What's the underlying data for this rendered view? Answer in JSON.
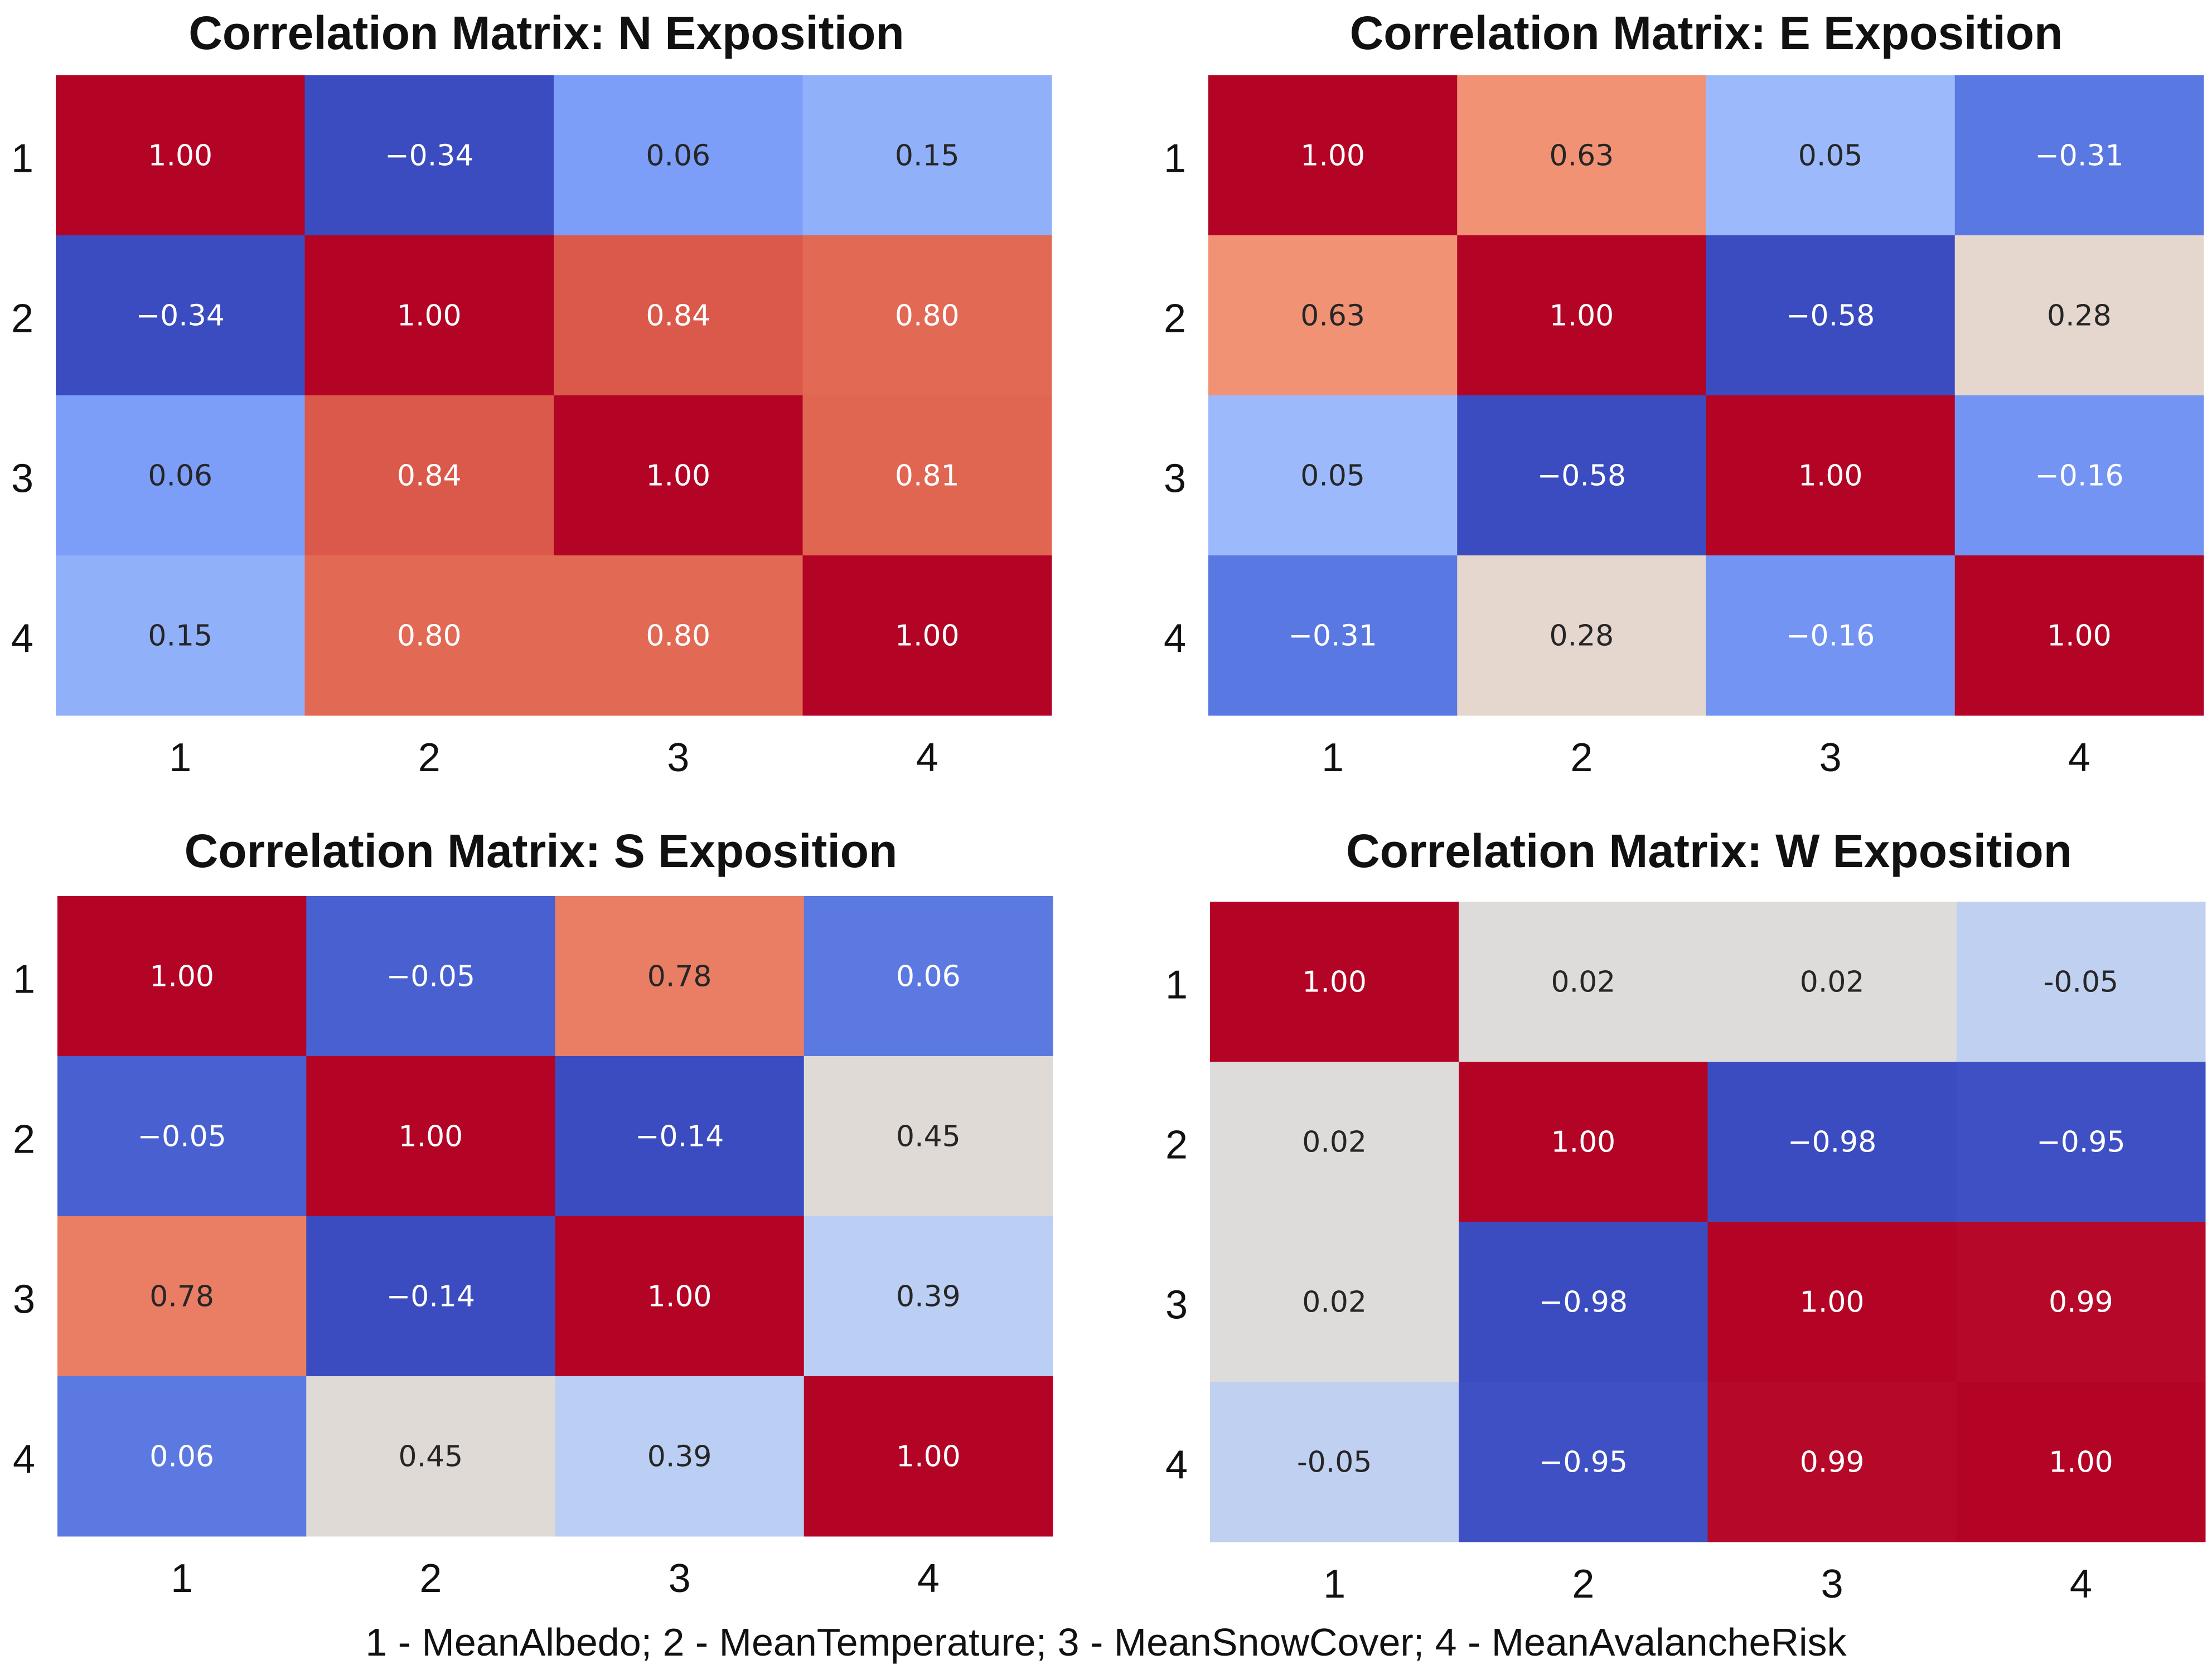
{
  "chart_data": [
    {
      "type": "heatmap",
      "title": "Correlation Matrix: N Exposition",
      "row_labels": [
        "1",
        "2",
        "3",
        "4"
      ],
      "col_labels": [
        "1",
        "2",
        "3",
        "4"
      ],
      "values": [
        [
          1.0,
          -0.34,
          0.06,
          0.15
        ],
        [
          -0.34,
          1.0,
          0.84,
          0.8
        ],
        [
          0.06,
          0.84,
          1.0,
          0.81
        ],
        [
          0.15,
          0.8,
          0.8,
          1.0
        ]
      ],
      "labels": [
        [
          "1.00",
          "−0.34",
          "0.06",
          "0.15"
        ],
        [
          "−0.34",
          "1.00",
          "0.84",
          "0.80"
        ],
        [
          "0.06",
          "0.84",
          "1.00",
          "0.81"
        ],
        [
          "0.15",
          "0.80",
          "0.80",
          "1.00"
        ]
      ],
      "vmin": -0.34,
      "vmax": 1.0
    },
    {
      "type": "heatmap",
      "title": "Correlation Matrix: E Exposition",
      "row_labels": [
        "1",
        "2",
        "3",
        "4"
      ],
      "col_labels": [
        "1",
        "2",
        "3",
        "4"
      ],
      "values": [
        [
          1.0,
          0.63,
          0.05,
          -0.31
        ],
        [
          0.63,
          1.0,
          -0.58,
          0.28
        ],
        [
          0.05,
          -0.58,
          1.0,
          -0.16
        ],
        [
          -0.31,
          0.28,
          -0.16,
          1.0
        ]
      ],
      "labels": [
        [
          "1.00",
          "0.63",
          "0.05",
          "−0.31"
        ],
        [
          "0.63",
          "1.00",
          "−0.58",
          "0.28"
        ],
        [
          "0.05",
          "−0.58",
          "1.00",
          "−0.16"
        ],
        [
          "−0.31",
          "0.28",
          "−0.16",
          "1.00"
        ]
      ],
      "vmin": -0.58,
      "vmax": 1.0
    },
    {
      "type": "heatmap",
      "title": "Correlation Matrix: S Exposition",
      "row_labels": [
        "1",
        "2",
        "3",
        "4"
      ],
      "col_labels": [
        "1",
        "2",
        "3",
        "4"
      ],
      "values": [
        [
          1.0,
          -0.05,
          0.78,
          0.06
        ],
        [
          -0.05,
          1.0,
          -0.14,
          0.45
        ],
        [
          0.78,
          -0.14,
          1.0,
          0.39
        ],
        [
          0.06,
          0.45,
          0.39,
          1.0
        ]
      ],
      "labels": [
        [
          "1.00",
          "−0.05",
          "0.78",
          "0.06"
        ],
        [
          "−0.05",
          "1.00",
          "−0.14",
          "0.45"
        ],
        [
          "0.78",
          "−0.14",
          "1.00",
          "0.39"
        ],
        [
          "0.06",
          "0.45",
          "0.39",
          "1.00"
        ]
      ],
      "vmin": -0.14,
      "vmax": 1.0
    },
    {
      "type": "heatmap",
      "title": "Correlation Matrix: W Exposition",
      "row_labels": [
        "1",
        "2",
        "3",
        "4"
      ],
      "col_labels": [
        "1",
        "2",
        "3",
        "4"
      ],
      "values": [
        [
          1.0,
          0.02,
          0.02,
          -0.05
        ],
        [
          0.02,
          1.0,
          -0.98,
          -0.95
        ],
        [
          0.02,
          -0.98,
          1.0,
          0.99
        ],
        [
          -0.05,
          -0.95,
          0.99,
          1.0
        ]
      ],
      "labels": [
        [
          "1.00",
          "0.02",
          "0.02",
          "-0.05"
        ],
        [
          "0.02",
          "1.00",
          "−0.98",
          "−0.95"
        ],
        [
          "0.02",
          "−0.98",
          "1.00",
          "0.99"
        ],
        [
          "-0.05",
          "−0.95",
          "0.99",
          "1.00"
        ]
      ],
      "vmin": -0.98,
      "vmax": 1.0
    }
  ],
  "legend": "1 - MeanAlbedo; 2 - MeanTemperature; 3 - MeanSnowCover; 4 - MeanAvalancheRisk",
  "colormap": "coolwarm"
}
